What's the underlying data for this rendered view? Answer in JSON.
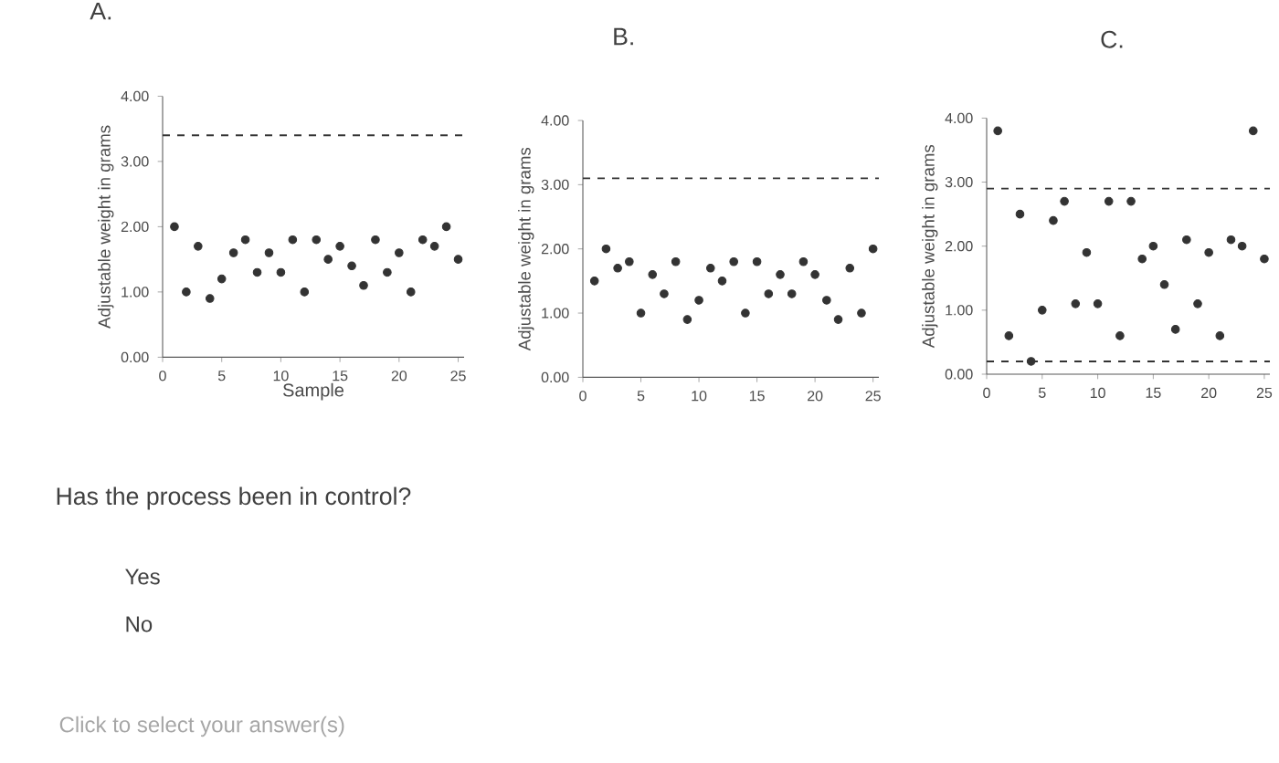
{
  "chart_data": [
    {
      "type": "scatter",
      "title": "A.",
      "xlabel": "Sample",
      "ylabel": "Adjustable weight in grams",
      "series": [
        {
          "color": "#333333",
          "x": [
            1,
            2,
            3,
            4,
            5,
            6,
            7,
            8,
            9,
            10,
            11,
            12,
            13,
            14,
            15,
            16,
            17,
            18,
            19,
            20,
            21,
            22,
            23,
            24,
            25
          ],
          "values": [
            2.0,
            1.0,
            1.7,
            0.9,
            1.2,
            1.6,
            1.8,
            1.3,
            1.6,
            1.3,
            1.8,
            1.0,
            1.8,
            1.5,
            1.7,
            1.4,
            1.1,
            1.8,
            1.3,
            1.6,
            1.0,
            1.8,
            1.7,
            2.0,
            1.5
          ]
        }
      ],
      "xlim": [
        0,
        25.5
      ],
      "ylim": [
        0,
        4
      ],
      "xticks": [
        0,
        5,
        10,
        15,
        20,
        25
      ],
      "yticks": [
        {
          "value": 0,
          "label": "0.00"
        },
        {
          "value": 1,
          "label": "1.00"
        },
        {
          "value": 2,
          "label": "2.00"
        },
        {
          "value": 3,
          "label": "3.00"
        },
        {
          "value": 4,
          "label": "4.00"
        }
      ],
      "ref_lines": [
        {
          "axis": "y",
          "value": 3.4,
          "line_style": "dashed"
        }
      ]
    },
    {
      "type": "scatter",
      "title": "B.",
      "ylabel": "Adjustable weight in grams",
      "series": [
        {
          "color": "#333333",
          "x": [
            1,
            2,
            3,
            4,
            5,
            6,
            7,
            8,
            9,
            10,
            11,
            12,
            13,
            14,
            15,
            16,
            17,
            18,
            19,
            20,
            21,
            22,
            23,
            24,
            25
          ],
          "values": [
            1.5,
            2.0,
            1.7,
            1.8,
            1.0,
            1.6,
            1.3,
            1.8,
            0.9,
            1.2,
            1.7,
            1.5,
            1.8,
            1.0,
            1.8,
            1.3,
            1.6,
            1.3,
            1.8,
            1.6,
            1.2,
            0.9,
            1.7,
            1.0,
            2.0
          ]
        }
      ],
      "xlim": [
        0,
        25.5
      ],
      "ylim": [
        0,
        4
      ],
      "xticks": [
        0,
        5,
        10,
        15,
        20,
        25
      ],
      "yticks": [
        {
          "value": 0,
          "label": "0.00"
        },
        {
          "value": 1,
          "label": "1.00"
        },
        {
          "value": 2,
          "label": "2.00"
        },
        {
          "value": 3,
          "label": "3.00"
        },
        {
          "value": 4,
          "label": "4.00"
        }
      ],
      "ref_lines": [
        {
          "axis": "y",
          "value": 3.1,
          "line_style": "dashed"
        }
      ]
    },
    {
      "type": "scatter",
      "title": "C.",
      "ylabel": "Adjustable weight in grams",
      "series": [
        {
          "color": "#333333",
          "x": [
            1,
            2,
            3,
            4,
            5,
            6,
            7,
            8,
            9,
            10,
            11,
            12,
            13,
            14,
            15,
            16,
            17,
            18,
            19,
            20,
            21,
            22,
            23,
            24,
            25
          ],
          "values": [
            3.8,
            0.6,
            2.5,
            0.2,
            1.0,
            2.4,
            2.7,
            1.1,
            1.9,
            1.1,
            2.7,
            0.6,
            2.7,
            1.8,
            2.0,
            1.4,
            0.7,
            2.1,
            1.1,
            1.9,
            0.6,
            2.1,
            2.0,
            3.8,
            1.8
          ]
        }
      ],
      "xlim": [
        0,
        25.5
      ],
      "ylim": [
        0,
        4
      ],
      "xticks": [
        0,
        5,
        10,
        15,
        20,
        25
      ],
      "yticks": [
        {
          "value": 0,
          "label": "0.00"
        },
        {
          "value": 1,
          "label": "1.00"
        },
        {
          "value": 2,
          "label": "2.00"
        },
        {
          "value": 3,
          "label": "3.00"
        },
        {
          "value": 4,
          "label": "4.00"
        }
      ],
      "ref_lines": [
        {
          "axis": "y",
          "value": 2.9,
          "line_style": "dashed"
        },
        {
          "axis": "y",
          "value": 0.2,
          "line_style": "dashed"
        }
      ]
    },
    {
      "type": "other",
      "annotations": [
        "Has the process been in control?",
        "Yes",
        "No",
        "Click to select your answer(s)"
      ]
    }
  ]
}
